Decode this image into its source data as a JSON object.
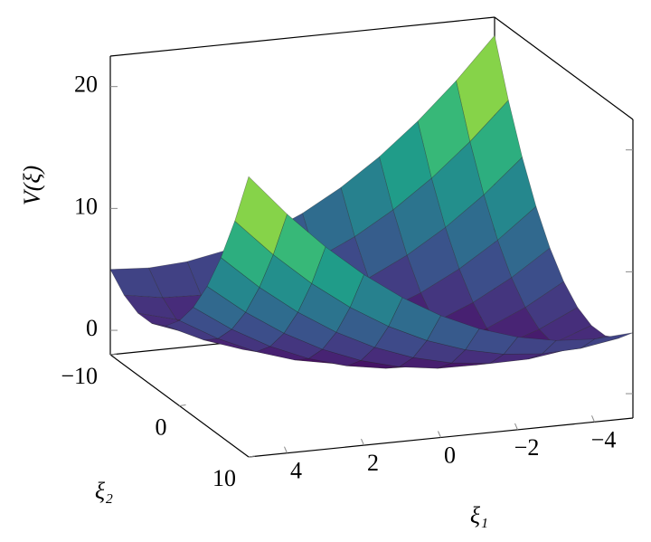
{
  "chart_data": {
    "type": "surface",
    "xlabel": "ξ₁",
    "ylabel": "ξ₂",
    "zlabel": "V(ξ)",
    "colormap": "viridis",
    "x": [
      -5,
      -4,
      -3,
      -2,
      -1,
      0,
      1,
      2,
      3,
      4,
      5
    ],
    "y": [
      -10,
      -8,
      -6,
      -4,
      -2,
      0,
      2,
      4,
      6,
      8,
      10
    ],
    "z": [
      [
        21,
        17.6,
        14.6,
        12,
        9.8,
        8,
        6.6,
        5.6,
        5,
        4.8,
        5
      ],
      [
        16.52,
        13.44,
        10.76,
        8.48,
        6.6,
        5.12,
        4.04,
        3.36,
        3.08,
        3.2,
        3.72
      ],
      [
        12.68,
        9.92,
        7.56,
        5.6,
        4.04,
        2.88,
        2.12,
        1.76,
        1.8,
        2.24,
        3.08
      ],
      [
        9.48,
        7.04,
        5,
        3.36,
        2.12,
        1.28,
        0.84,
        0.8,
        1.16,
        1.92,
        3.08
      ],
      [
        6.92,
        4.8,
        3.08,
        1.76,
        0.84,
        0.32,
        0.2,
        0.48,
        1.16,
        2.24,
        3.72
      ],
      [
        5,
        3.2,
        1.8,
        0.8,
        0.2,
        0,
        0.2,
        0.8,
        1.8,
        3.2,
        5
      ],
      [
        3.72,
        2.24,
        1.16,
        0.48,
        0.2,
        0.32,
        0.84,
        1.76,
        3.08,
        4.8,
        6.92
      ],
      [
        3.08,
        1.92,
        1.16,
        0.8,
        0.84,
        1.28,
        2.12,
        3.36,
        5,
        7.04,
        9.48
      ],
      [
        3.08,
        2.24,
        1.8,
        1.76,
        2.12,
        2.88,
        4.04,
        5.6,
        7.56,
        9.92,
        12.68
      ],
      [
        3.72,
        3.2,
        3.08,
        3.36,
        4.04,
        5.12,
        6.6,
        8.48,
        10.76,
        13.44,
        16.52
      ],
      [
        5,
        4.8,
        5,
        5.6,
        6.6,
        8,
        9.8,
        12,
        14.6,
        17.6,
        21
      ]
    ],
    "xlim": [
      -5,
      5
    ],
    "ylim": [
      -10,
      10
    ],
    "zlim": [
      -2,
      22.5
    ],
    "xticks": [
      {
        "value": -4,
        "label": "−4"
      },
      {
        "value": -2,
        "label": "−2"
      },
      0,
      2,
      4
    ],
    "yticks": [
      {
        "value": -10,
        "label": "−10"
      },
      0,
      10
    ],
    "zticks": [
      0,
      10,
      20
    ]
  }
}
